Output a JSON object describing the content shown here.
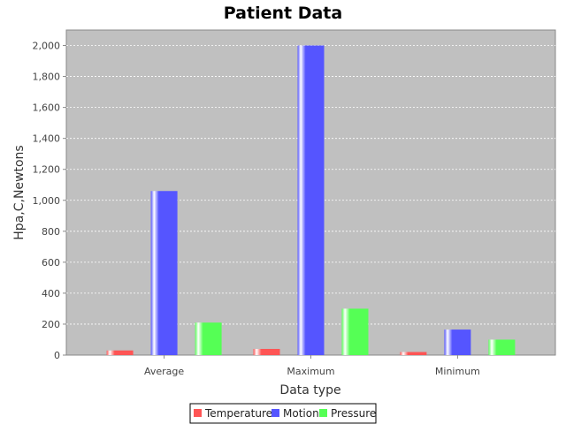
{
  "chart_data": {
    "type": "bar",
    "title": "Patient Data",
    "xlabel": "Data type",
    "ylabel": "Hpa,C,Newtons",
    "categories": [
      "Average",
      "Maximum",
      "Minimum"
    ],
    "series": [
      {
        "name": "Temperature",
        "color": "#ff5555",
        "values": [
          30,
          40,
          20
        ]
      },
      {
        "name": "Motion",
        "color": "#5555ff",
        "values": [
          1060,
          2000,
          165
        ]
      },
      {
        "name": "Pressure",
        "color": "#55ff55",
        "values": [
          210,
          300,
          100
        ]
      }
    ],
    "ylim": [
      0,
      2100
    ],
    "yticks": [
      0,
      200,
      400,
      600,
      800,
      1000,
      1200,
      1400,
      1600,
      1800,
      2000
    ],
    "ytick_labels": [
      "0",
      "200",
      "400",
      "600",
      "800",
      "1,000",
      "1,200",
      "1,400",
      "1,600",
      "1,800",
      "2,000"
    ],
    "plot_background": "#c0c0c0",
    "grid": true,
    "legend_position": "bottom"
  }
}
